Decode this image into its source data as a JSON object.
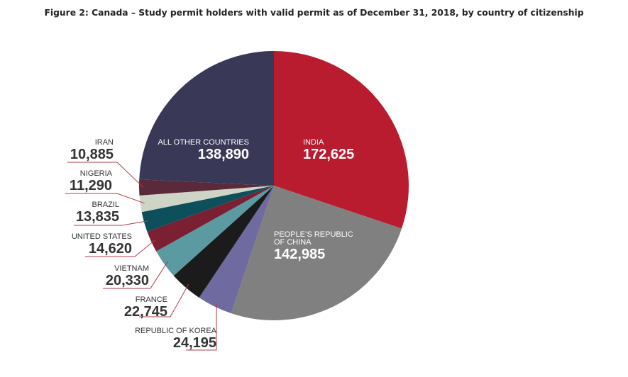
{
  "chart_data": {
    "type": "pie",
    "title": "Figure 2: Canada – Study permit holders with valid permit as of December 31, 2018, by country of citizenship",
    "categories": [
      "INDIA",
      "PEOPLE’S REPUBLIC OF CHINA",
      "REPUBLIC OF KOREA",
      "FRANCE",
      "VIETNAM",
      "UNITED STATES",
      "BRAZIL",
      "NIGERIA",
      "IRAN",
      "ALL OTHER COUNTRIES"
    ],
    "values": [
      172625,
      142985,
      24195,
      22745,
      20330,
      14620,
      13835,
      11290,
      10885,
      138890
    ],
    "value_labels": [
      "172,625",
      "142,985",
      "24,195",
      "22,745",
      "20,330",
      "14,620",
      "13,835",
      "11,290",
      "10,885",
      "138,890"
    ],
    "colors": [
      "#b81c2e",
      "#808080",
      "#6f6a9f",
      "#1b1b1b",
      "#5b9aa1",
      "#7b1f33",
      "#0e4f5c",
      "#cfd5c6",
      "#5a2a3a",
      "#3a3857"
    ]
  }
}
